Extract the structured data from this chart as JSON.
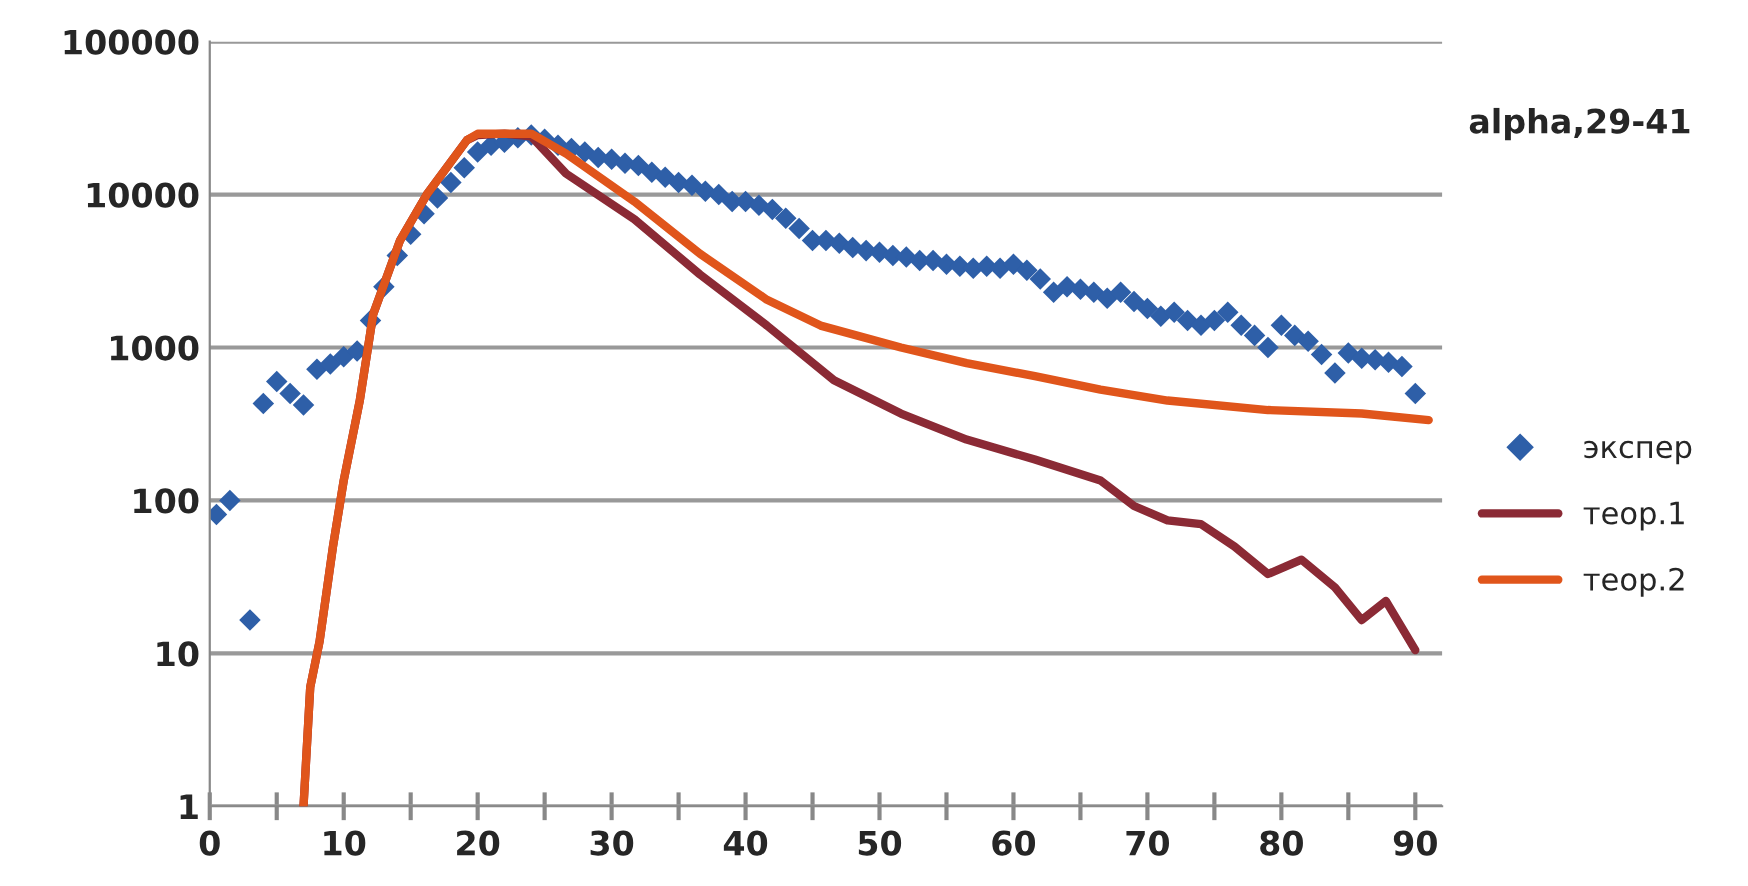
{
  "chart_data": {
    "type": "scatter",
    "title": "alpha,29-41",
    "log": "y",
    "grid": "y",
    "legend": "right",
    "xlim": [
      0,
      92
    ],
    "xticks": [
      0,
      {
        "value": 5,
        "label": null
      },
      10,
      {
        "value": 15,
        "label": null
      },
      20,
      {
        "value": 25,
        "label": null
      },
      30,
      {
        "value": 35,
        "label": null
      },
      40,
      {
        "value": 45,
        "label": null
      },
      50,
      {
        "value": 55,
        "label": null
      },
      60,
      {
        "value": 65,
        "label": null
      },
      70,
      {
        "value": 75,
        "label": null
      },
      80,
      {
        "value": 85,
        "label": null
      },
      90
    ],
    "ylim": [
      1,
      100000
    ],
    "yticks": [
      1,
      10,
      100,
      1000,
      10000,
      100000
    ],
    "series": [
      {
        "name": "экспер",
        "marker": "diamond",
        "color": "#2e5fa8",
        "x": [
          0.5,
          1.5,
          3,
          4,
          5,
          6,
          7,
          8,
          9,
          10,
          11,
          12,
          13,
          14,
          15,
          16,
          17,
          18,
          19,
          20,
          21,
          22,
          23,
          24,
          25,
          26,
          27,
          28,
          29,
          30,
          31,
          32,
          33,
          34,
          35,
          36,
          37,
          38,
          39,
          40,
          41,
          42,
          43,
          44,
          45,
          46,
          47,
          48,
          49,
          50,
          51,
          52,
          53,
          54,
          55,
          56,
          57,
          58,
          59,
          60,
          61,
          62,
          63,
          64,
          65,
          66,
          67,
          68,
          69,
          70,
          71,
          72,
          73,
          74,
          75,
          76,
          77,
          78,
          79,
          80,
          81,
          82,
          83,
          84,
          85,
          86,
          87,
          88,
          89,
          90
        ],
        "values": [
          81,
          100,
          16.5,
          430,
          600,
          500,
          420,
          720,
          780,
          870,
          950,
          1500,
          2500,
          4000,
          5500,
          7500,
          9500,
          12000,
          15000,
          19000,
          21000,
          22000,
          23500,
          24500,
          23000,
          21000,
          20000,
          19000,
          17500,
          17000,
          16000,
          15500,
          14000,
          13000,
          12000,
          11500,
          10500,
          10000,
          9000,
          9000,
          8500,
          8000,
          7000,
          6000,
          5000,
          5000,
          4800,
          4500,
          4300,
          4200,
          4000,
          3900,
          3700,
          3700,
          3500,
          3400,
          3300,
          3400,
          3300,
          3500,
          3200,
          2800,
          2300,
          2500,
          2400,
          2300,
          2100,
          2300,
          2000,
          1800,
          1600,
          1700,
          1500,
          1400,
          1500,
          1700,
          1400,
          1200,
          1000,
          1400,
          1200,
          1100,
          900,
          680,
          920,
          850,
          830,
          800,
          750,
          500
        ]
      },
      {
        "name": "теор.1",
        "type": "line",
        "color": "#8b2a35",
        "x": [
          7,
          7.5,
          8.2,
          9.2,
          10,
          11.2,
          12.2,
          14.2,
          16.2,
          19.2,
          20,
          22,
          24,
          26.6,
          31.7,
          36.6,
          41.6,
          46.6,
          51.6,
          56.5,
          61.6,
          66.5,
          69,
          71.5,
          74,
          76.5,
          79,
          81.5,
          84,
          86,
          87.8,
          90
        ],
        "values": [
          1,
          6,
          12,
          50,
          135,
          450,
          1650,
          5000,
          10000,
          22700,
          24500,
          25000,
          24000,
          13700,
          6900,
          3000,
          1390,
          610,
          370,
          250,
          185,
          135,
          92,
          74,
          70,
          50,
          33,
          41,
          27,
          16.5,
          22,
          10.5
        ]
      },
      {
        "name": "теор.2",
        "type": "line",
        "color": "#e0551b",
        "x": [
          7,
          7.5,
          8.2,
          9.2,
          10,
          11.2,
          12.2,
          14.2,
          16.2,
          19.2,
          20,
          22,
          24,
          26.6,
          31.7,
          36.6,
          41.6,
          45.6,
          51.6,
          56.5,
          61.6,
          66.5,
          71.5,
          79,
          86,
          91
        ],
        "values": [
          1,
          6,
          12,
          50,
          135,
          450,
          1650,
          5000,
          10000,
          22700,
          25000,
          25000,
          25000,
          18500,
          9000,
          4100,
          2050,
          1390,
          1000,
          790,
          650,
          530,
          450,
          390,
          370,
          335
        ]
      }
    ]
  }
}
